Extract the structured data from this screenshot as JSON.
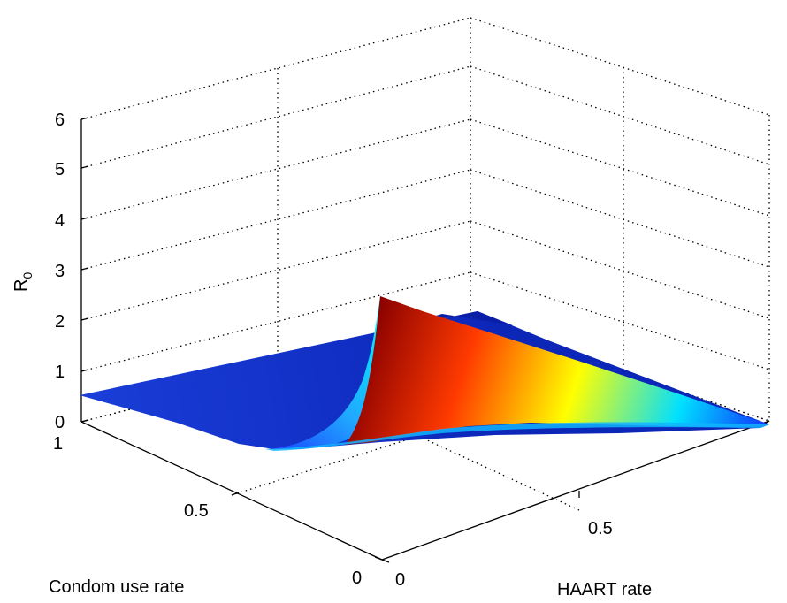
{
  "chart_data": {
    "type": "surface",
    "xlabel": "HAART rate",
    "ylabel": "Condom use rate",
    "zlabel_main": "R",
    "zlabel_sub": "0",
    "x_ticks": [
      "0",
      "0.5"
    ],
    "y_ticks": [
      "0",
      "0.5",
      "1"
    ],
    "z_ticks": [
      "0",
      "1",
      "2",
      "3",
      "4",
      "5",
      "6"
    ],
    "xlim": [
      0,
      1
    ],
    "ylim": [
      0,
      1
    ],
    "zlim": [
      0,
      6
    ],
    "grid": true,
    "colormap": "jet",
    "surface_samples": {
      "description_of_grid": "R0 at (HAART rate, Condom use rate)",
      "points": [
        {
          "haart": 0,
          "condom": 0,
          "r0": 2.2
        },
        {
          "haart": 0,
          "condom": 0.5,
          "r0": 0.55
        },
        {
          "haart": 0,
          "condom": 1,
          "r0": 0.45
        },
        {
          "haart": 0.5,
          "condom": 0,
          "r0": 1.0
        },
        {
          "haart": 0.5,
          "condom": 0.5,
          "r0": 0.25
        },
        {
          "haart": 0.5,
          "condom": 1,
          "r0": 0.2
        },
        {
          "haart": 1,
          "condom": 0,
          "r0": 0.1
        },
        {
          "haart": 1,
          "condom": 0.5,
          "r0": 0.05
        },
        {
          "haart": 1,
          "condom": 1,
          "r0": 0.03
        }
      ]
    }
  }
}
